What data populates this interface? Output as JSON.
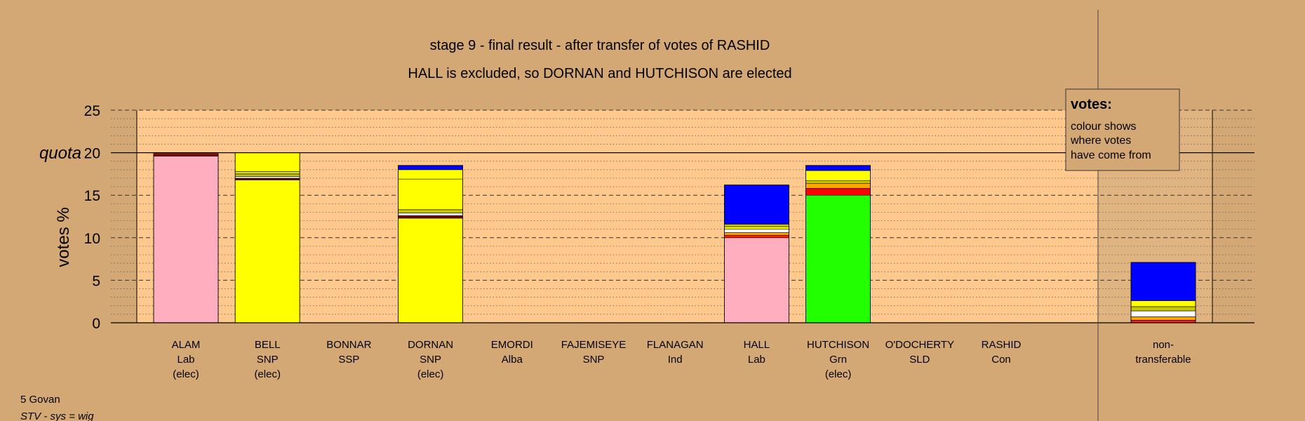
{
  "chart_data": {
    "type": "bar",
    "title": "stage 9 - final result - after transfer of votes of RASHID",
    "subtitle": "HALL is excluded, so DORNAN and HUTCHISON are elected",
    "ylabel": "votes %",
    "ylim": [
      0,
      25
    ],
    "yticks": [
      0,
      5,
      10,
      15,
      20,
      25
    ],
    "quota": 20,
    "quota_label": "quota",
    "grid": true,
    "legend": {
      "title": "votes:",
      "lines": [
        "colour shows",
        "where votes",
        "have come from"
      ],
      "position": "top-right"
    },
    "candidates": [
      {
        "name": "ALAM",
        "party": "Lab",
        "status": "(elec)",
        "total": 19.9,
        "segments": [
          {
            "value": 19.6,
            "color": "#ffaec0"
          },
          {
            "value": 0.15,
            "color": "#800000"
          },
          {
            "value": 0.15,
            "color": "#ff2000"
          }
        ]
      },
      {
        "name": "BELL",
        "party": "SNP",
        "status": "(elec)",
        "total": 20.0,
        "segments": [
          {
            "value": 16.8,
            "color": "#ffff00"
          },
          {
            "value": 0.2,
            "color": "#600000"
          },
          {
            "value": 0.2,
            "color": "#ffffff"
          },
          {
            "value": 0.3,
            "color": "#c8c800"
          },
          {
            "value": 0.3,
            "color": "#e0e000"
          },
          {
            "value": 2.2,
            "color": "#ffff00"
          }
        ]
      },
      {
        "name": "BONNAR",
        "party": "SSP",
        "status": "",
        "total": 0,
        "segments": []
      },
      {
        "name": "DORNAN",
        "party": "SNP",
        "status": "(elec)",
        "total": 18.5,
        "segments": [
          {
            "value": 12.3,
            "color": "#ffff00"
          },
          {
            "value": 0.3,
            "color": "#800000"
          },
          {
            "value": 0.3,
            "color": "#ffffff"
          },
          {
            "value": 0.4,
            "color": "#c8c800"
          },
          {
            "value": 3.6,
            "color": "#ffff00"
          },
          {
            "value": 1.1,
            "color": "#ffff00"
          },
          {
            "value": 0.5,
            "color": "#0000ff"
          }
        ]
      },
      {
        "name": "EMORDI",
        "party": "Alba",
        "status": "",
        "total": 0,
        "segments": []
      },
      {
        "name": "FAJEMISEYE",
        "party": "SNP",
        "status": "",
        "total": 0,
        "segments": []
      },
      {
        "name": "FLANAGAN",
        "party": "Ind",
        "status": "",
        "total": 0,
        "segments": []
      },
      {
        "name": "HALL",
        "party": "Lab",
        "status": "",
        "total": 16.2,
        "segments": [
          {
            "value": 10.0,
            "color": "#ffaec0"
          },
          {
            "value": 0.3,
            "color": "#ff2000"
          },
          {
            "value": 0.3,
            "color": "#ffa500"
          },
          {
            "value": 0.4,
            "color": "#ffffff"
          },
          {
            "value": 0.3,
            "color": "#ffff00"
          },
          {
            "value": 0.3,
            "color": "#c8c800"
          },
          {
            "value": 4.6,
            "color": "#0000ff"
          }
        ]
      },
      {
        "name": "HUTCHISON",
        "party": "Grn",
        "status": "(elec)",
        "total": 18.5,
        "segments": [
          {
            "value": 15.0,
            "color": "#22ff00"
          },
          {
            "value": 0.8,
            "color": "#ff0000"
          },
          {
            "value": 0.6,
            "color": "#ffa500"
          },
          {
            "value": 0.3,
            "color": "#c8c800"
          },
          {
            "value": 1.2,
            "color": "#ffff00"
          },
          {
            "value": 0.6,
            "color": "#0000ff"
          }
        ]
      },
      {
        "name": "O'DOCHERTY",
        "party": "SLD",
        "status": "",
        "total": 0,
        "segments": []
      },
      {
        "name": "RASHID",
        "party": "Con",
        "status": "",
        "total": 0,
        "segments": []
      }
    ],
    "nontransferable": {
      "line1": "non-",
      "line2": "transferable",
      "total": 7.1,
      "segments": [
        {
          "value": 0.3,
          "color": "#ff2000"
        },
        {
          "value": 0.4,
          "color": "#ffa500"
        },
        {
          "value": 0.7,
          "color": "#ffffff"
        },
        {
          "value": 0.5,
          "color": "#c8c800"
        },
        {
          "value": 0.7,
          "color": "#ffff00"
        },
        {
          "value": 4.5,
          "color": "#0000ff"
        }
      ]
    },
    "colors": {
      "background": "#d4a874",
      "plot_area": "#ffc88c",
      "nontransferable_area": "#e0b480"
    }
  },
  "footer": {
    "line1": "5 Govan",
    "line2": "STV - sys = wig"
  }
}
